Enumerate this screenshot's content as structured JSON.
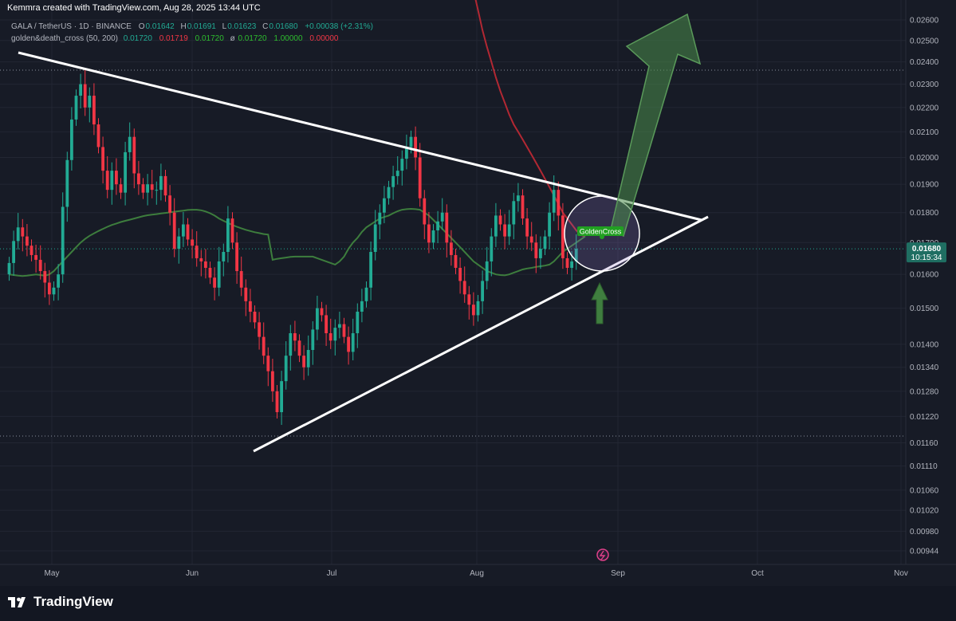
{
  "header": {
    "credit": "Kemmra created with TradingView.com, Aug 28, 2025 13:44 UTC",
    "symbol": "GALA / TetherUS · 1D · BINANCE",
    "ohlc": {
      "o_label": "O",
      "o": "0.01642",
      "h_label": "H",
      "h": "0.01691",
      "l_label": "L",
      "l": "0.01623",
      "c_label": "C",
      "c": "0.01680",
      "change": "+0.00038 (+2.31%)"
    },
    "indicator": {
      "name": "golden&death_cross (50, 200)",
      "v1": "0.01720",
      "v2": "0.01719",
      "v3": "0.01720",
      "sym": "ø",
      "v4": "0.01720",
      "v5": "1.00000",
      "v6": "0.00000"
    }
  },
  "colors": {
    "background": "#171b26",
    "up": "#22ab94",
    "down": "#f23645",
    "ma_short": "#3d7d3d",
    "ma_long": "#b22833",
    "trend": "#ffffff",
    "arrow": "#3f7e3f",
    "price_label": "#1f6e62"
  },
  "footer": {
    "brand": "TradingView"
  },
  "chart_data": {
    "type": "candlestick",
    "symbol": "GALA / TetherUS",
    "interval": "1D",
    "exchange": "BINANCE",
    "y_scale": "log",
    "y_ticks": [
      "0.02600",
      "0.02500",
      "0.02400",
      "0.02300",
      "0.02200",
      "0.02100",
      "0.02000",
      "0.01900",
      "0.01800",
      "0.01700",
      "0.01600",
      "0.01500",
      "0.01400",
      "0.01340",
      "0.01280",
      "0.01220",
      "0.01160",
      "0.01110",
      "0.01060",
      "0.01020",
      "0.00980",
      "0.00944"
    ],
    "x_labels": [
      "May",
      "Jun",
      "Jul",
      "Aug",
      "Sep",
      "Oct",
      "Nov"
    ],
    "last_price": {
      "value": "0.01680",
      "countdown": "10:15:34"
    },
    "candles_start": "2025-04-23",
    "candles_close": [
      0.01635,
      0.01705,
      0.0175,
      0.0172,
      0.0169,
      0.0166,
      0.01645,
      0.0161,
      0.01575,
      0.0154,
      0.0156,
      0.016,
      0.0182,
      0.0199,
      0.0215,
      0.0225,
      0.023,
      0.022,
      0.0225,
      0.0213,
      0.0204,
      0.0195,
      0.0188,
      0.0195,
      0.019,
      0.0187,
      0.0202,
      0.0208,
      0.0194,
      0.019,
      0.0187,
      0.019,
      0.0188,
      0.0188,
      0.0193,
      0.0186,
      0.018,
      0.0168,
      0.0172,
      0.0176,
      0.0171,
      0.0169,
      0.0165,
      0.0164,
      0.0162,
      0.0159,
      0.0156,
      0.0164,
      0.0167,
      0.0178,
      0.017,
      0.0161,
      0.0156,
      0.0152,
      0.0149,
      0.0146,
      0.0142,
      0.0137,
      0.0133,
      0.0128,
      0.0123,
      0.01305,
      0.0137,
      0.0143,
      0.0141,
      0.0137,
      0.0134,
      0.01385,
      0.0144,
      0.015,
      0.0148,
      0.0143,
      0.0141,
      0.01445,
      0.01455,
      0.0142,
      0.0138,
      0.0143,
      0.0149,
      0.0152,
      0.0156,
      0.0167,
      0.0176,
      0.018,
      0.0185,
      0.0189,
      0.0193,
      0.0195,
      0.01995,
      0.0204,
      0.0208,
      0.02,
      0.0185,
      0.0176,
      0.017,
      0.0174,
      0.0177,
      0.018,
      0.017,
      0.0166,
      0.0162,
      0.0158,
      0.0154,
      0.0151,
      0.0148,
      0.0152,
      0.0158,
      0.0164,
      0.0172,
      0.0179,
      0.0176,
      0.0172,
      0.0176,
      0.0184,
      0.0186,
      0.0178,
      0.0172,
      0.017,
      0.0165,
      0.0168,
      0.0172,
      0.018,
      0.0188,
      0.0179,
      0.0165,
      0.0162,
      0.0164,
      0.0168
    ],
    "ma_short": [
      0.01645,
      0.01648,
      0.0165,
      0.01652,
      0.01654,
      0.01655,
      0.01655,
      0.01655,
      0.01655,
      0.01655,
      0.0165,
      0.01645,
      0.0164,
      0.01635,
      0.0163,
      0.0164,
      0.01655,
      0.0168,
      0.017,
      0.01715,
      0.01735,
      0.0175,
      0.0176,
      0.0177,
      0.0178,
      0.01785,
      0.0179,
      0.01798,
      0.01805,
      0.0181,
      0.01812,
      0.01813,
      0.01812,
      0.0181,
      0.018,
      0.0179,
      0.01775,
      0.0176,
      0.01745,
      0.0173,
      0.01715,
      0.017,
      0.01685,
      0.0167,
      0.01655,
      0.0164,
      0.0163,
      0.0162,
      0.0161,
      0.01605,
      0.016,
      0.01598,
      0.01597,
      0.016,
      0.01605,
      0.0161,
      0.01615,
      0.01618,
      0.0162,
      0.01623,
      0.01625,
      0.01627,
      0.0163,
      0.0164,
      0.01655,
      0.0167,
      0.0168,
      0.0169,
      0.017,
      0.0171,
      0.0172
    ],
    "ma_short_start_index": 59,
    "ma_long": [
      0.032,
      0.0305,
      0.029,
      0.0275,
      0.0265,
      0.0255,
      0.0247,
      0.024,
      0.0233,
      0.0227,
      0.0222,
      0.0217,
      0.0213,
      0.021,
      0.0207,
      0.0204,
      0.0201,
      0.0198,
      0.0195,
      0.0192,
      0.0189,
      0.0186,
      0.0183,
      0.018,
      0.0178,
      0.0176,
      0.0174,
      0.01725,
      0.01719
    ],
    "ma_long_start_index": 101,
    "annotations": [
      {
        "type": "text",
        "text": "GoldenCross"
      }
    ]
  }
}
